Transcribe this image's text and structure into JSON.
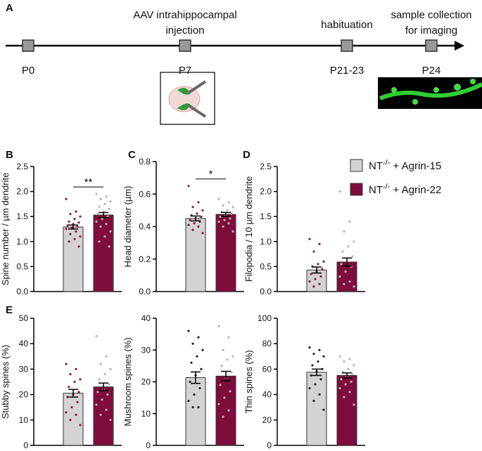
{
  "letters": [
    "A",
    "B",
    "C",
    "D",
    "E"
  ],
  "timeline": {
    "events": [
      {
        "above": [],
        "below": "P0"
      },
      {
        "above": [
          "AAV intrahippocampal",
          "injection"
        ],
        "below": "P7"
      },
      {
        "above": [
          "habituation"
        ],
        "below": "P21-23"
      },
      {
        "above": [
          "sample collection",
          "for imaging"
        ],
        "below": "P24"
      }
    ]
  },
  "chart_data": [
    {
      "type": "bar",
      "ylabel": "Spine number / µm dendrite",
      "ylim": [
        0,
        2.5
      ],
      "yticks": [
        {
          "value": 0,
          "label": "0.0"
        },
        0.5,
        {
          "value": 1,
          "label": "1.0"
        },
        1.5,
        {
          "value": 2,
          "label": "2.0"
        },
        2.5
      ],
      "significance": "**",
      "series": [
        {
          "name": "NT-/- + Agrin-15",
          "color": "#d3d3d3",
          "point_color": "#8a1a3e",
          "values": [
            1.29
          ],
          "errors": [
            0.04
          ],
          "points": [
            1.85,
            1.6,
            1.55,
            1.5,
            1.45,
            1.4,
            1.38,
            1.35,
            1.32,
            1.3,
            1.28,
            1.25,
            1.2,
            1.15,
            1.1,
            1.05,
            1.0,
            0.9
          ]
        },
        {
          "name": "NT-/- + Agrin-22",
          "color": "#7e0d3c",
          "point_color": "#b5b5b5",
          "values": [
            1.53
          ],
          "errors": [
            0.05
          ],
          "points": [
            1.95,
            1.9,
            1.85,
            1.8,
            1.75,
            1.7,
            1.65,
            1.6,
            1.55,
            1.5,
            1.45,
            1.4,
            1.35,
            1.3,
            1.2,
            1.1,
            1.0,
            0.9
          ]
        }
      ]
    },
    {
      "type": "bar",
      "ylabel": "Head diameter (µm)",
      "ylim": [
        0,
        0.8
      ],
      "yticks": [
        {
          "value": 0,
          "label": "0.0"
        },
        0.2,
        0.4,
        0.6,
        0.8
      ],
      "significance": "*",
      "series": [
        {
          "name": "NT-/- + Agrin-15",
          "color": "#d3d3d3",
          "point_color": "#8a1a3e",
          "values": [
            0.45
          ],
          "errors": [
            0.015
          ],
          "points": [
            0.65,
            0.55,
            0.52,
            0.5,
            0.48,
            0.47,
            0.46,
            0.45,
            0.44,
            0.43,
            0.42,
            0.41,
            0.4,
            0.38,
            0.36
          ]
        },
        {
          "name": "NT-/- + Agrin-22",
          "color": "#7e0d3c",
          "point_color": "#b5b5b5",
          "values": [
            0.475
          ],
          "errors": [
            0.012
          ],
          "points": [
            0.57,
            0.55,
            0.53,
            0.52,
            0.5,
            0.49,
            0.48,
            0.47,
            0.46,
            0.45,
            0.44,
            0.43,
            0.42,
            0.4,
            0.37
          ]
        }
      ]
    },
    {
      "type": "bar",
      "ylabel": "Filopodia / 10  µm dendrite",
      "ylim": [
        0,
        2.5
      ],
      "yticks": [
        {
          "value": 0,
          "label": "0.0"
        },
        0.5,
        {
          "value": 1,
          "label": "1.0"
        },
        1.5,
        {
          "value": 2,
          "label": "2.0"
        },
        2.5
      ],
      "series": [
        {
          "name": "NT-/- + Agrin-15",
          "color": "#d3d3d3",
          "point_color": "#8a1a3e",
          "values": [
            0.43
          ],
          "errors": [
            0.06
          ],
          "points": [
            1.05,
            0.95,
            0.8,
            0.6,
            0.55,
            0.5,
            0.45,
            0.4,
            0.35,
            0.3,
            0.25,
            0.2,
            0.15,
            0.1
          ]
        },
        {
          "name": "NT-/- + Agrin-22",
          "color": "#7e0d3c",
          "point_color": "#b5b5b5",
          "values": [
            0.59
          ],
          "errors": [
            0.08
          ],
          "points": [
            2.0,
            1.4,
            1.2,
            1.0,
            0.9,
            0.8,
            0.7,
            0.6,
            0.55,
            0.5,
            0.4,
            0.3,
            0.2,
            0.15,
            0.1
          ]
        }
      ]
    },
    {
      "type": "bar",
      "ylabel": "Stubby spines (%)",
      "ylim": [
        0,
        50
      ],
      "yticks": [
        0,
        10,
        20,
        30,
        40,
        50
      ],
      "series": [
        {
          "name": "NT-/- + Agrin-15",
          "color": "#d3d3d3",
          "point_color": "#8a1a3e",
          "values": [
            20.5
          ],
          "errors": [
            1.5
          ],
          "points": [
            32,
            30,
            28,
            26,
            25,
            23,
            21,
            20,
            19,
            17,
            15,
            13,
            12,
            10,
            8
          ]
        },
        {
          "name": "NT-/- + Agrin-22",
          "color": "#7e0d3c",
          "point_color": "#b5b5b5",
          "values": [
            23
          ],
          "errors": [
            1.5
          ],
          "points": [
            43,
            35,
            32,
            30,
            28,
            26,
            24,
            22,
            21,
            20,
            18,
            16,
            14,
            12,
            10
          ]
        }
      ]
    },
    {
      "type": "bar",
      "ylabel": "Mushroom spines (%)",
      "ylim": [
        0,
        40
      ],
      "yticks": [
        0,
        10,
        20,
        30,
        40
      ],
      "series": [
        {
          "name": "NT-/- + Agrin-15",
          "color": "#d3d3d3",
          "point_color": "#222222",
          "values": [
            21.3
          ],
          "errors": [
            1.8
          ],
          "points": [
            36,
            34,
            32,
            30,
            28,
            26,
            24,
            22,
            20,
            18,
            16,
            14,
            12,
            12
          ]
        },
        {
          "name": "NT-/- + Agrin-22",
          "color": "#7e0d3c",
          "point_color": "#b5b5b5",
          "values": [
            21.8
          ],
          "errors": [
            1.5
          ],
          "points": [
            37.5,
            34,
            30,
            28,
            27,
            25,
            23,
            21,
            19,
            17,
            15,
            13,
            11,
            9
          ]
        }
      ]
    },
    {
      "type": "bar",
      "ylabel": "Thin spines (%)",
      "ylim": [
        0,
        100
      ],
      "yticks": [
        0,
        20,
        40,
        60,
        80,
        100
      ],
      "series": [
        {
          "name": "NT-/- + Agrin-15",
          "color": "#d3d3d3",
          "point_color": "#222222",
          "values": [
            57.5
          ],
          "errors": [
            2.5
          ],
          "points": [
            77,
            75,
            72,
            70,
            66,
            63,
            60,
            58,
            55,
            52,
            48,
            45,
            40,
            35,
            28
          ]
        },
        {
          "name": "NT-/- + Agrin-22",
          "color": "#7e0d3c",
          "point_color": "#b5b5b5",
          "values": [
            55
          ],
          "errors": [
            2
          ],
          "points": [
            70,
            68,
            66,
            63,
            60,
            58,
            56,
            54,
            52,
            50,
            48,
            45,
            42,
            38,
            32
          ]
        }
      ]
    }
  ]
}
